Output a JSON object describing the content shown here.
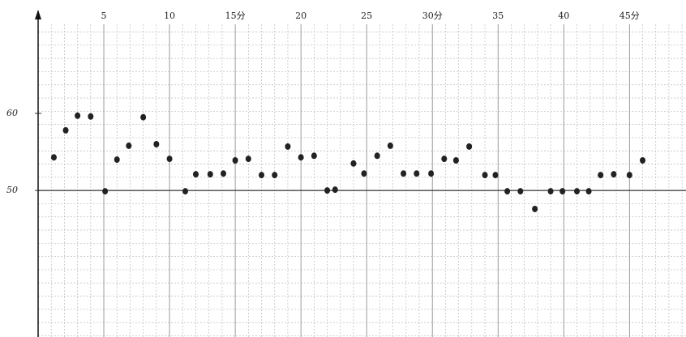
{
  "chart_data": {
    "type": "scatter",
    "x": [
      1.2,
      2.1,
      3.0,
      4.0,
      5.1,
      6.0,
      6.9,
      8.0,
      9.0,
      10.0,
      11.2,
      12.0,
      13.1,
      14.1,
      15.0,
      16.0,
      17.0,
      18.0,
      19.0,
      20.0,
      21.0,
      22.0,
      22.6,
      24.0,
      24.8,
      25.8,
      26.8,
      27.8,
      28.8,
      29.9,
      30.9,
      31.8,
      32.8,
      34.0,
      34.8,
      35.7,
      36.7,
      37.8,
      39.0,
      39.9,
      41.0,
      41.9,
      42.8,
      43.8,
      45.0,
      46.0
    ],
    "values": [
      54.3,
      57.8,
      59.7,
      59.6,
      49.9,
      54.0,
      55.8,
      59.5,
      56.0,
      54.1,
      49.9,
      52.1,
      52.1,
      52.2,
      53.9,
      54.1,
      52.0,
      52.0,
      55.7,
      54.3,
      54.5,
      50.0,
      50.1,
      53.5,
      52.2,
      54.5,
      55.8,
      52.2,
      52.2,
      52.2,
      54.1,
      53.9,
      55.7,
      52.0,
      52.0,
      49.9,
      49.9,
      47.6,
      49.9,
      49.9,
      49.9,
      49.9,
      52.0,
      52.1,
      52.0,
      53.9
    ],
    "color": "#222222",
    "xlim": [
      -2.9,
      49.3
    ],
    "ylim": [
      31.0,
      74.7
    ],
    "xticks": [
      5,
      10,
      {
        "value": 15,
        "label": "15分"
      },
      20,
      25,
      {
        "value": 30,
        "label": "30分"
      },
      35,
      40,
      {
        "value": 45,
        "label": "45分"
      }
    ],
    "yticks": [
      {
        "value": 50,
        "label": "50"
      },
      {
        "value": 60,
        "label": "60"
      }
    ],
    "grid": true
  }
}
